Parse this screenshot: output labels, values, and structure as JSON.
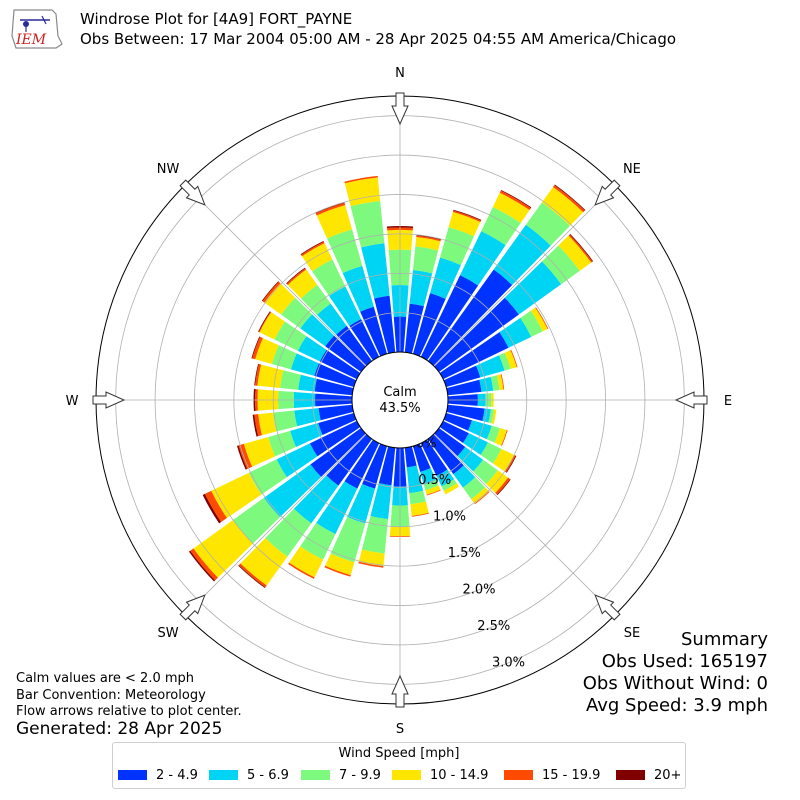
{
  "header": {
    "title": "Windrose Plot for [4A9] FORT_PAYNE",
    "subtitle": "Obs Between: 17 Mar 2004 05:00 AM - 28 Apr 2025 04:55 AM America/Chicago"
  },
  "logo": {
    "text": "IEM",
    "icon": "iem-logo-icon"
  },
  "calm": {
    "label": "Calm",
    "value": "43.5%"
  },
  "summary": {
    "heading": "Summary",
    "obs_used": "Obs Used: 165197",
    "obs_without_wind": "Obs Without Wind: 0",
    "avg_speed": "Avg Speed: 3.9 mph"
  },
  "notes": {
    "calm_note": "Calm values are < 2.0 mph",
    "bar_convention": "Bar Convention: Meteorology",
    "flow_arrows": "Flow arrows relative to plot center.",
    "generated": "Generated: 28 Apr 2025"
  },
  "chart_data": {
    "type": "windrose",
    "directions": [
      "N",
      "NNE",
      "NE",
      "ENE",
      "E",
      "ESE",
      "SE",
      "SSE",
      "S",
      "SSW",
      "SW",
      "WSW",
      "W",
      "WNW",
      "NW",
      "NNW"
    ],
    "direction_labels": [
      {
        "label": "N",
        "angle": 0
      },
      {
        "label": "NE",
        "angle": 45
      },
      {
        "label": "E",
        "angle": 90
      },
      {
        "label": "SE",
        "angle": 135
      },
      {
        "label": "S",
        "angle": 180
      },
      {
        "label": "SW",
        "angle": 225
      },
      {
        "label": "W",
        "angle": 270
      },
      {
        "label": "NW",
        "angle": 315
      }
    ],
    "bar_directions": [
      0,
      10,
      20,
      30,
      40,
      50,
      60,
      70,
      80,
      90,
      100,
      110,
      120,
      130,
      140,
      150,
      160,
      170,
      180,
      190,
      200,
      210,
      220,
      230,
      240,
      250,
      260,
      270,
      280,
      290,
      300,
      310,
      320,
      330,
      340,
      350
    ],
    "speed_bins": [
      {
        "name": "2 - 4.9",
        "color": "#0033ff"
      },
      {
        "name": "5 - 6.9",
        "color": "#00d4f4"
      },
      {
        "name": "7 - 9.9",
        "color": "#7dfa7d"
      },
      {
        "name": "10 - 14.9",
        "color": "#ffe600"
      },
      {
        "name": "15 - 19.9",
        "color": "#ff4a00"
      },
      {
        "name": "20+",
        "color": "#800000"
      }
    ],
    "cumulative_percent": [
      [
        0.45,
        0.85,
        1.3,
        1.55,
        1.58,
        1.6
      ],
      [
        0.62,
        1.05,
        1.35,
        1.47,
        1.49,
        1.5
      ],
      [
        0.8,
        1.27,
        1.67,
        1.87,
        1.89,
        1.9
      ],
      [
        1.15,
        1.77,
        2.11,
        2.31,
        2.34,
        2.35
      ],
      [
        1.43,
        2.13,
        2.48,
        2.72,
        2.75,
        2.76
      ],
      [
        1.25,
        1.91,
        2.2,
        2.38,
        2.4,
        2.41
      ],
      [
        0.92,
        1.24,
        1.4,
        1.47,
        1.48,
        1.48
      ],
      [
        0.45,
        0.77,
        0.85,
        0.93,
        0.94,
        0.94
      ],
      [
        0.43,
        0.58,
        0.66,
        0.71,
        0.72,
        0.72
      ],
      [
        0.38,
        0.48,
        0.55,
        0.58,
        0.58,
        0.58
      ],
      [
        0.47,
        0.55,
        0.59,
        0.62,
        0.62,
        0.62
      ],
      [
        0.34,
        0.6,
        0.71,
        0.8,
        0.81,
        0.81
      ],
      [
        0.36,
        0.63,
        0.82,
        1.0,
        1.02,
        1.03
      ],
      [
        0.41,
        0.69,
        0.92,
        1.08,
        1.11,
        1.12
      ],
      [
        0.55,
        0.76,
        0.94,
        1.01,
        1.02,
        1.02
      ],
      [
        0.46,
        0.61,
        0.67,
        0.72,
        0.72,
        0.72
      ],
      [
        0.34,
        0.51,
        0.58,
        0.64,
        0.65,
        0.65
      ],
      [
        0.25,
        0.58,
        0.72,
        0.87,
        0.88,
        0.88
      ],
      [
        0.49,
        0.73,
        1.0,
        1.12,
        1.13,
        1.13
      ],
      [
        0.48,
        0.91,
        1.35,
        1.51,
        1.53,
        1.53
      ],
      [
        0.56,
        1.02,
        1.53,
        1.7,
        1.72,
        1.72
      ],
      [
        0.64,
        1.28,
        1.64,
        1.89,
        1.91,
        1.91
      ],
      [
        0.73,
        1.32,
        1.84,
        2.29,
        2.32,
        2.33
      ],
      [
        0.79,
        1.52,
        2.0,
        2.62,
        2.67,
        2.69
      ],
      [
        0.66,
        1.13,
        1.52,
        2.05,
        2.14,
        2.17
      ],
      [
        0.47,
        0.84,
        1.13,
        1.45,
        1.52,
        1.54
      ],
      [
        0.43,
        0.74,
        1.01,
        1.2,
        1.25,
        1.27
      ],
      [
        0.47,
        0.74,
        0.94,
        1.2,
        1.23,
        1.25
      ],
      [
        0.48,
        0.69,
        0.92,
        1.21,
        1.24,
        1.25
      ],
      [
        0.52,
        0.83,
        1.08,
        1.3,
        1.34,
        1.35
      ],
      [
        0.52,
        0.83,
        1.16,
        1.37,
        1.38,
        1.39
      ],
      [
        0.56,
        0.95,
        1.25,
        1.51,
        1.54,
        1.55
      ],
      [
        0.55,
        0.9,
        1.19,
        1.43,
        1.45,
        1.46
      ],
      [
        0.53,
        0.99,
        1.37,
        1.6,
        1.62,
        1.63
      ],
      [
        0.62,
        1.16,
        1.64,
        1.96,
        1.99,
        2.0
      ],
      [
        0.72,
        1.39,
        1.93,
        2.23,
        2.25,
        2.25
      ]
    ],
    "radial_ticks": [
      0.0,
      0.5,
      1.0,
      1.5,
      2.0,
      2.5,
      3.0
    ],
    "radial_tick_labels": [
      "0.0%",
      "0.5%",
      "1.0%",
      "1.5%",
      "2.0%",
      "2.5%",
      "3.0%"
    ],
    "rmax": 3.25,
    "grid": true
  },
  "legend": {
    "title": "Wind Speed [mph]",
    "items": [
      "2 - 4.9",
      "5 - 6.9",
      "7 - 9.9",
      "10 - 14.9",
      "15 - 19.9",
      "20+"
    ],
    "colors": [
      "#0033ff",
      "#00d4f4",
      "#7dfa7d",
      "#ffe600",
      "#ff4a00",
      "#800000"
    ]
  }
}
